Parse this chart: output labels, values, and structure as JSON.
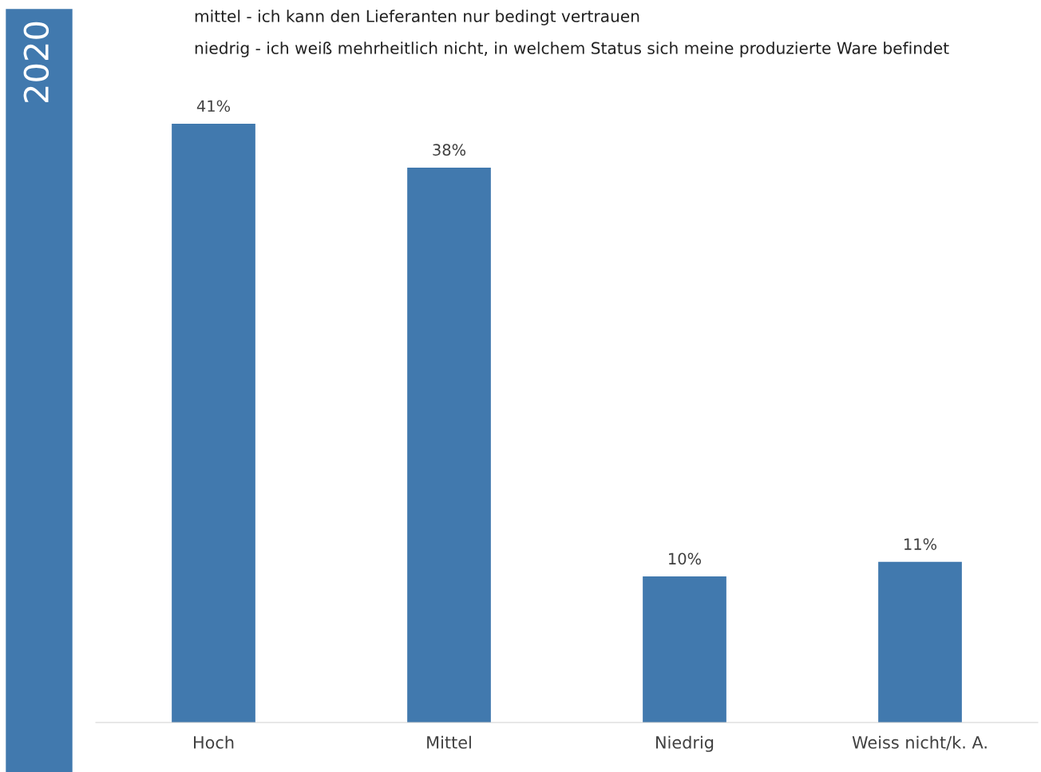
{
  "chart_data": {
    "type": "bar",
    "title": "2020",
    "annotations": [
      "mittel - ich kann den Lieferanten nur bedingt vertrauen",
      "niedrig - ich weiß mehrheitlich nicht, in welchem Status sich meine produzierte Ware befindet"
    ],
    "categories": [
      "Hoch",
      "Mittel",
      "Niedrig",
      "Weiss nicht/k. A."
    ],
    "values": [
      41,
      38,
      10,
      11
    ],
    "color": "#4179ae",
    "data_labels": true,
    "value_labels": [
      "41%",
      "38%",
      "10%",
      "11%"
    ],
    "grid": false,
    "legend": false
  }
}
